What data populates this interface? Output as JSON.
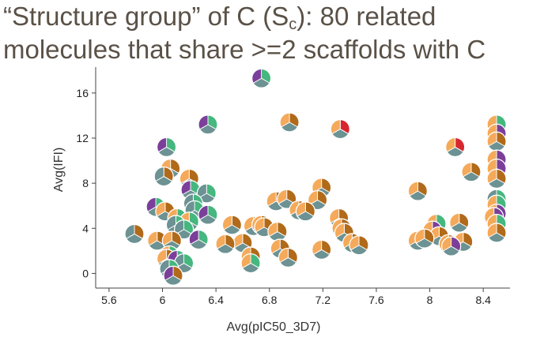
{
  "title": {
    "line1_pre": "“Structure group” of C (S",
    "line1_sub": "c",
    "line1_post": "): 80 related",
    "line2": "molecules that share >=2 scaffolds with C"
  },
  "colors": {
    "orange": "#f4aa5a",
    "teal": "#6c9293",
    "green": "#45b77f",
    "purple": "#7b3f9a",
    "brown": "#b06a1a",
    "red": "#d8262f",
    "axis": "#444444"
  },
  "chart_data": {
    "type": "scatter",
    "title": "“Structure group” of C (Sc): 80 related molecules that share >=2 scaffolds with C",
    "xlabel": "Avg(pIC50_3D7)",
    "ylabel": "Avg(IFI)",
    "xlim": [
      5.5,
      8.6
    ],
    "ylim": [
      -1.3,
      18.3
    ],
    "xticks": [
      "5.6",
      "6",
      "6.4",
      "6.8",
      "7.2",
      "7.6",
      "8",
      "8.4"
    ],
    "xtick_values": [
      5.6,
      6.0,
      6.4,
      6.8,
      7.2,
      7.6,
      8.0,
      8.4
    ],
    "yticks": [
      "0",
      "4",
      "8",
      "12",
      "16"
    ],
    "ytick_values": [
      0,
      4,
      8,
      12,
      16
    ],
    "grid": false,
    "marker": "pie glyph, each point split into 3 colored slices",
    "points": [
      {
        "x": 6.74,
        "y": 17.3,
        "slices": [
          "green",
          "teal",
          "purple"
        ]
      },
      {
        "x": 6.34,
        "y": 13.2,
        "slices": [
          "green",
          "teal",
          "purple"
        ]
      },
      {
        "x": 6.95,
        "y": 13.4,
        "slices": [
          "brown",
          "teal",
          "orange"
        ]
      },
      {
        "x": 7.33,
        "y": 12.8,
        "slices": [
          "red",
          "teal",
          "orange"
        ]
      },
      {
        "x": 8.5,
        "y": 13.2,
        "slices": [
          "green",
          "red",
          "orange"
        ]
      },
      {
        "x": 8.5,
        "y": 12.4,
        "slices": [
          "purple",
          "red",
          "orange"
        ]
      },
      {
        "x": 8.5,
        "y": 11.7,
        "slices": [
          "brown",
          "teal",
          "orange"
        ]
      },
      {
        "x": 6.03,
        "y": 11.2,
        "slices": [
          "green",
          "teal",
          "purple"
        ]
      },
      {
        "x": 8.19,
        "y": 11.2,
        "slices": [
          "red",
          "teal",
          "orange"
        ]
      },
      {
        "x": 8.5,
        "y": 10.1,
        "slices": [
          "purple",
          "red",
          "orange"
        ]
      },
      {
        "x": 6.06,
        "y": 9.3,
        "slices": [
          "brown",
          "teal",
          "orange"
        ]
      },
      {
        "x": 8.5,
        "y": 9.3,
        "slices": [
          "purple",
          "red",
          "orange"
        ]
      },
      {
        "x": 8.31,
        "y": 9.0,
        "slices": [
          "brown",
          "teal",
          "orange"
        ]
      },
      {
        "x": 6.01,
        "y": 8.6,
        "slices": [
          "brown",
          "teal",
          "teal"
        ]
      },
      {
        "x": 6.2,
        "y": 8.4,
        "slices": [
          "brown",
          "teal",
          "orange"
        ]
      },
      {
        "x": 8.5,
        "y": 8.4,
        "slices": [
          "brown",
          "teal",
          "orange"
        ]
      },
      {
        "x": 6.21,
        "y": 7.4,
        "slices": [
          "green",
          "teal",
          "purple"
        ]
      },
      {
        "x": 6.33,
        "y": 7.1,
        "slices": [
          "green",
          "teal",
          "teal"
        ]
      },
      {
        "x": 7.19,
        "y": 7.6,
        "slices": [
          "brown",
          "teal",
          "orange"
        ]
      },
      {
        "x": 7.91,
        "y": 7.3,
        "slices": [
          "brown",
          "teal",
          "orange"
        ]
      },
      {
        "x": 8.5,
        "y": 6.6,
        "slices": [
          "green",
          "teal",
          "teal"
        ]
      },
      {
        "x": 6.23,
        "y": 6.2,
        "slices": [
          "green",
          "teal",
          "teal"
        ]
      },
      {
        "x": 6.85,
        "y": 6.4,
        "slices": [
          "brown",
          "teal",
          "orange"
        ]
      },
      {
        "x": 6.93,
        "y": 6.6,
        "slices": [
          "brown",
          "teal",
          "orange"
        ]
      },
      {
        "x": 7.16,
        "y": 6.5,
        "slices": [
          "brown",
          "teal",
          "orange"
        ]
      },
      {
        "x": 8.5,
        "y": 6.1,
        "slices": [
          "green",
          "red",
          "orange"
        ]
      },
      {
        "x": 5.95,
        "y": 5.9,
        "slices": [
          "green",
          "teal",
          "purple"
        ]
      },
      {
        "x": 6.02,
        "y": 5.5,
        "slices": [
          "brown",
          "teal",
          "orange"
        ]
      },
      {
        "x": 6.24,
        "y": 5.6,
        "slices": [
          "green",
          "teal",
          "teal"
        ]
      },
      {
        "x": 6.34,
        "y": 5.2,
        "slices": [
          "green",
          "teal",
          "purple"
        ]
      },
      {
        "x": 7.02,
        "y": 5.6,
        "slices": [
          "brown",
          "teal",
          "orange"
        ]
      },
      {
        "x": 7.07,
        "y": 5.5,
        "slices": [
          "brown",
          "teal",
          "orange"
        ]
      },
      {
        "x": 8.5,
        "y": 5.3,
        "slices": [
          "purple",
          "red",
          "orange"
        ]
      },
      {
        "x": 8.48,
        "y": 5.0,
        "slices": [
          "purple",
          "red",
          "orange"
        ]
      },
      {
        "x": 6.11,
        "y": 4.9,
        "slices": [
          "green",
          "teal",
          "orange"
        ]
      },
      {
        "x": 6.2,
        "y": 4.6,
        "slices": [
          "green",
          "teal",
          "orange"
        ]
      },
      {
        "x": 6.1,
        "y": 4.3,
        "slices": [
          "green",
          "teal",
          "teal"
        ]
      },
      {
        "x": 6.16,
        "y": 3.9,
        "slices": [
          "green",
          "teal",
          "teal"
        ]
      },
      {
        "x": 7.32,
        "y": 4.9,
        "slices": [
          "brown",
          "teal",
          "orange"
        ]
      },
      {
        "x": 8.5,
        "y": 4.4,
        "slices": [
          "green",
          "red",
          "orange"
        ]
      },
      {
        "x": 8.05,
        "y": 4.4,
        "slices": [
          "green",
          "teal",
          "orange"
        ]
      },
      {
        "x": 8.22,
        "y": 4.5,
        "slices": [
          "brown",
          "teal",
          "orange"
        ]
      },
      {
        "x": 6.52,
        "y": 4.3,
        "slices": [
          "brown",
          "teal",
          "orange"
        ]
      },
      {
        "x": 6.68,
        "y": 4.2,
        "slices": [
          "brown",
          "teal",
          "orange"
        ]
      },
      {
        "x": 6.74,
        "y": 4.3,
        "slices": [
          "brown",
          "teal",
          "orange"
        ]
      },
      {
        "x": 6.76,
        "y": 4.1,
        "slices": [
          "brown",
          "teal",
          "orange"
        ]
      },
      {
        "x": 7.34,
        "y": 4.0,
        "slices": [
          "brown",
          "teal",
          "orange"
        ]
      },
      {
        "x": 5.79,
        "y": 3.5,
        "slices": [
          "brown",
          "teal",
          "teal"
        ]
      },
      {
        "x": 6.86,
        "y": 3.7,
        "slices": [
          "brown",
          "teal",
          "orange"
        ]
      },
      {
        "x": 7.36,
        "y": 3.6,
        "slices": [
          "brown",
          "teal",
          "orange"
        ]
      },
      {
        "x": 8.02,
        "y": 3.8,
        "slices": [
          "purple",
          "teal",
          "orange"
        ]
      },
      {
        "x": 8.5,
        "y": 3.6,
        "slices": [
          "brown",
          "teal",
          "orange"
        ]
      },
      {
        "x": 8.07,
        "y": 3.3,
        "slices": [
          "brown",
          "teal",
          "orange"
        ]
      },
      {
        "x": 6.27,
        "y": 3.0,
        "slices": [
          "green",
          "teal",
          "purple"
        ]
      },
      {
        "x": 5.96,
        "y": 2.9,
        "slices": [
          "brown",
          "teal",
          "orange"
        ]
      },
      {
        "x": 6.07,
        "y": 2.9,
        "slices": [
          "brown",
          "teal",
          "orange"
        ]
      },
      {
        "x": 6.6,
        "y": 2.7,
        "slices": [
          "brown",
          "teal",
          "orange"
        ]
      },
      {
        "x": 6.47,
        "y": 2.6,
        "slices": [
          "brown",
          "teal",
          "orange"
        ]
      },
      {
        "x": 7.42,
        "y": 2.7,
        "slices": [
          "brown",
          "teal",
          "orange"
        ]
      },
      {
        "x": 7.47,
        "y": 2.5,
        "slices": [
          "brown",
          "teal",
          "orange"
        ]
      },
      {
        "x": 7.91,
        "y": 2.9,
        "slices": [
          "brown",
          "teal",
          "orange"
        ]
      },
      {
        "x": 7.96,
        "y": 3.1,
        "slices": [
          "brown",
          "teal",
          "orange"
        ]
      },
      {
        "x": 8.25,
        "y": 2.8,
        "slices": [
          "brown",
          "teal",
          "orange"
        ]
      },
      {
        "x": 8.14,
        "y": 2.6,
        "slices": [
          "brown",
          "teal",
          "orange"
        ]
      },
      {
        "x": 8.16,
        "y": 2.4,
        "slices": [
          "purple",
          "teal",
          "orange"
        ]
      },
      {
        "x": 6.88,
        "y": 2.2,
        "slices": [
          "brown",
          "teal",
          "orange"
        ]
      },
      {
        "x": 7.19,
        "y": 2.1,
        "slices": [
          "brown",
          "teal",
          "orange"
        ]
      },
      {
        "x": 6.05,
        "y": 1.6,
        "slices": [
          "green",
          "teal",
          "orange"
        ]
      },
      {
        "x": 6.03,
        "y": 1.3,
        "slices": [
          "brown",
          "teal",
          "orange"
        ]
      },
      {
        "x": 6.66,
        "y": 1.5,
        "slices": [
          "brown",
          "teal",
          "orange"
        ]
      },
      {
        "x": 6.94,
        "y": 1.4,
        "slices": [
          "brown",
          "teal",
          "orange"
        ]
      },
      {
        "x": 6.11,
        "y": 1.2,
        "slices": [
          "green",
          "teal",
          "purple"
        ]
      },
      {
        "x": 6.16,
        "y": 0.9,
        "slices": [
          "green",
          "teal",
          "teal"
        ]
      },
      {
        "x": 6.66,
        "y": 0.9,
        "slices": [
          "green",
          "teal",
          "orange"
        ]
      },
      {
        "x": 6.05,
        "y": 0.4,
        "slices": [
          "green",
          "teal",
          "teal"
        ]
      },
      {
        "x": 6.08,
        "y": -0.2,
        "slices": [
          "brown",
          "teal",
          "purple"
        ]
      }
    ]
  }
}
